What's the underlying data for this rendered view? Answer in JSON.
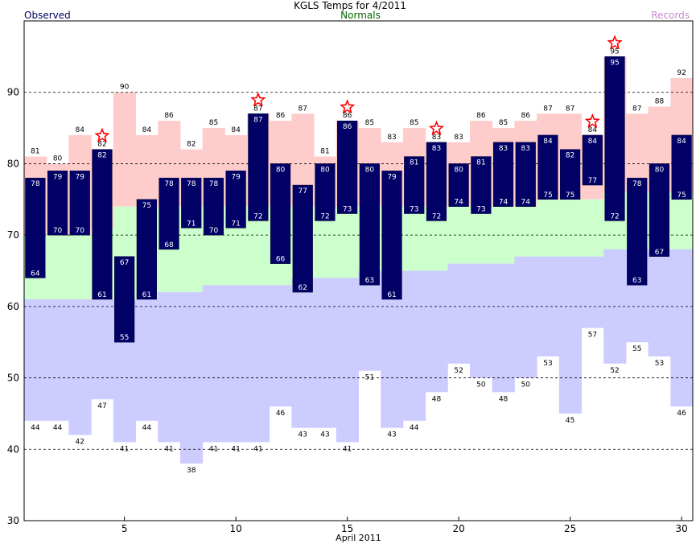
{
  "chart_data": {
    "type": "bar",
    "title": "KGLS Temps for 4/2011",
    "xlabel": "April 2011",
    "legend": {
      "observed": "Observed",
      "normals": "Normals",
      "records": "Records"
    },
    "colors": {
      "observed": "#000066",
      "normals": "#ccffcc",
      "records_high": "#ffcccc",
      "records_low": "#ccccff",
      "observed_label": "#ffffff",
      "record_star": "#ff0000",
      "grid": "#000000"
    },
    "ylim": [
      30,
      100
    ],
    "yticks": [
      30,
      40,
      50,
      60,
      70,
      80,
      90
    ],
    "xticks": [
      5,
      10,
      15,
      20,
      25,
      30
    ],
    "days": [
      1,
      2,
      3,
      4,
      5,
      6,
      7,
      8,
      9,
      10,
      11,
      12,
      13,
      14,
      15,
      16,
      17,
      18,
      19,
      20,
      21,
      22,
      23,
      24,
      25,
      26,
      27,
      28,
      29,
      30
    ],
    "observed_high": [
      78,
      79,
      79,
      82,
      67,
      75,
      78,
      78,
      78,
      79,
      87,
      80,
      77,
      80,
      86,
      80,
      79,
      81,
      83,
      80,
      81,
      83,
      83,
      84,
      82,
      84,
      95,
      78,
      80,
      84
    ],
    "observed_low": [
      64,
      70,
      70,
      61,
      55,
      61,
      68,
      71,
      70,
      71,
      72,
      66,
      62,
      72,
      73,
      63,
      61,
      73,
      72,
      74,
      73,
      74,
      74,
      75,
      75,
      77,
      72,
      63,
      67,
      75
    ],
    "normal_high": [
      70,
      70,
      70,
      71,
      74,
      74,
      74,
      74,
      74,
      74,
      74,
      74,
      74,
      74,
      74,
      74,
      74,
      74,
      74,
      74,
      74,
      74,
      74,
      75,
      75,
      75,
      76,
      76,
      76,
      76
    ],
    "normal_low": [
      61,
      61,
      61,
      61,
      61,
      61,
      62,
      62,
      63,
      63,
      63,
      63,
      64,
      64,
      64,
      65,
      65,
      65,
      65,
      66,
      66,
      66,
      67,
      67,
      67,
      67,
      68,
      68,
      68,
      68
    ],
    "record_high": [
      81,
      80,
      84,
      82,
      90,
      84,
      86,
      82,
      85,
      84,
      87,
      86,
      87,
      81,
      86,
      85,
      83,
      85,
      83,
      83,
      86,
      85,
      86,
      87,
      87,
      84,
      95,
      87,
      88,
      92
    ],
    "record_low": [
      44,
      44,
      42,
      47,
      41,
      44,
      41,
      38,
      41,
      41,
      41,
      46,
      43,
      43,
      41,
      51,
      43,
      44,
      48,
      52,
      50,
      48,
      50,
      53,
      45,
      57,
      52,
      55,
      53,
      46
    ],
    "record_set_days": [
      4,
      11,
      15,
      19,
      26,
      27
    ]
  }
}
